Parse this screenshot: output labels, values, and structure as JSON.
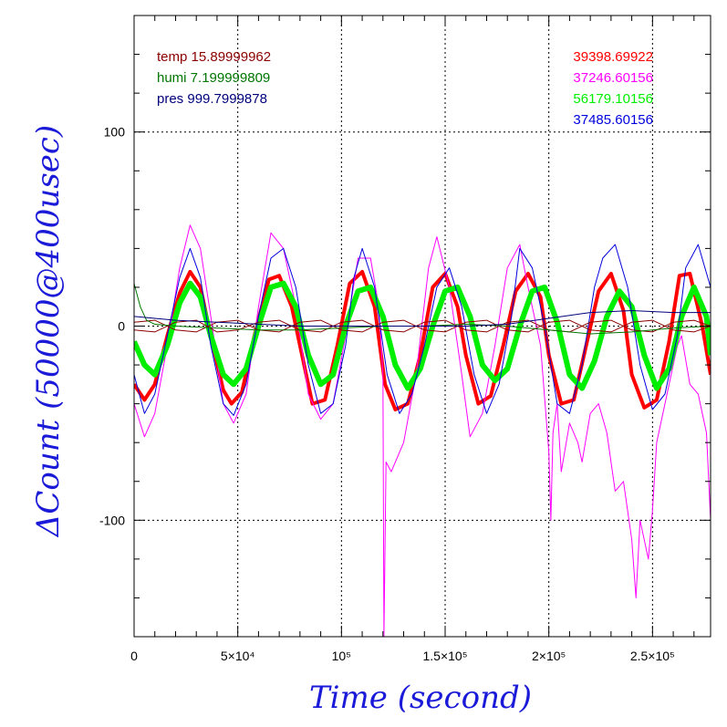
{
  "chart_data": {
    "type": "line",
    "xlabel": "Time (second)",
    "ylabel": "ΔCount (50000@400usec)",
    "xlim": [
      0,
      278000
    ],
    "ylim": [
      -160,
      160
    ],
    "grid": true,
    "x_ticks": [
      {
        "value": 0,
        "label": "0"
      },
      {
        "value": 50000,
        "label": "5×10⁴"
      },
      {
        "value": 100000,
        "label": "10⁵"
      },
      {
        "value": 150000,
        "label": "1.5×10⁵"
      },
      {
        "value": 200000,
        "label": "2×10⁵"
      },
      {
        "value": 250000,
        "label": "2.5×10⁵"
      }
    ],
    "y_ticks": [
      {
        "value": 100,
        "label": "100"
      },
      {
        "value": 0,
        "label": "0"
      },
      {
        "value": -100,
        "label": "-100"
      }
    ],
    "legend_left": [
      {
        "label": "temp 15.89999962",
        "color": "#8b0000"
      },
      {
        "label": "humi 7.199999809",
        "color": "#007700"
      },
      {
        "label": "pres 999.7999878",
        "color": "#00007a"
      }
    ],
    "legend_right": [
      {
        "label": "39398.69922",
        "color": "#ff0000"
      },
      {
        "label": "37246.60156",
        "color": "#ff00ff"
      },
      {
        "label": "56179.10156",
        "color": "#00ee00"
      },
      {
        "label": "37485.60156",
        "color": "#0000dd"
      }
    ],
    "series": [
      {
        "name": "39398.69922",
        "color": "#ff0000",
        "width": 4,
        "x": [
          0,
          5000,
          10000,
          16000,
          22000,
          27000,
          32000,
          37000,
          43000,
          47000,
          52000,
          58000,
          65000,
          70000,
          76000,
          82000,
          86000,
          92000,
          98000,
          104000,
          110000,
          116000,
          121000,
          126000,
          132000,
          138000,
          144000,
          150000,
          156000,
          160000,
          166000,
          172000,
          178000,
          184000,
          190000,
          196000,
          200000,
          206000,
          212000,
          218000,
          224000,
          230000,
          236000,
          240000,
          246000,
          252000,
          258000,
          263000,
          268000,
          274000,
          278000
        ],
        "y": [
          -30,
          -38,
          -30,
          -5,
          17,
          28,
          20,
          -5,
          -33,
          -40,
          -34,
          -5,
          24,
          26,
          10,
          -20,
          -40,
          -38,
          -10,
          22,
          28,
          10,
          -30,
          -43,
          -40,
          -15,
          20,
          27,
          10,
          -15,
          -40,
          -36,
          -10,
          18,
          27,
          15,
          -15,
          -40,
          -38,
          -10,
          18,
          27,
          8,
          -25,
          -42,
          -38,
          -8,
          26,
          27,
          0,
          -25
        ]
      },
      {
        "name": "37246.60156",
        "color": "#ff00ff",
        "width": 1,
        "x": [
          0,
          5000,
          10000,
          16000,
          22000,
          27000,
          32000,
          37000,
          43000,
          48000,
          54000,
          60000,
          66000,
          72000,
          78000,
          84000,
          90000,
          96000,
          102000,
          108000,
          114000,
          118000,
          120000,
          120500,
          121500,
          124000,
          130000,
          136000,
          142000,
          146000,
          152000,
          158000,
          162000,
          168000,
          174000,
          180000,
          186000,
          190000,
          196000,
          200000,
          201000,
          202000,
          204000,
          206000,
          210000,
          214000,
          216000,
          220000,
          224000,
          228000,
          232000,
          236000,
          240000,
          242000,
          244000,
          248000,
          250000,
          252000,
          256000,
          262000,
          264000,
          268000,
          272000,
          276000,
          278000
        ],
        "y": [
          -40,
          -57,
          -45,
          -10,
          30,
          52,
          40,
          5,
          -40,
          -50,
          -35,
          10,
          48,
          40,
          10,
          -35,
          -48,
          -40,
          -5,
          35,
          35,
          10,
          -25,
          -160,
          -70,
          -75,
          -60,
          -25,
          30,
          46,
          20,
          -25,
          -57,
          -45,
          -10,
          30,
          42,
          20,
          -10,
          -65,
          -100,
          -55,
          -40,
          -75,
          -50,
          -60,
          -70,
          -45,
          -40,
          -55,
          -85,
          -80,
          -110,
          -140,
          -100,
          -120,
          -95,
          -60,
          -40,
          -10,
          -5,
          -30,
          -35,
          -55,
          -100
        ]
      },
      {
        "name": "56179.10156",
        "color": "#00ee00",
        "width": 6,
        "x": [
          0,
          5000,
          10000,
          16000,
          22000,
          27000,
          32000,
          37000,
          43000,
          48000,
          54000,
          60000,
          66000,
          72000,
          78000,
          84000,
          90000,
          96000,
          102000,
          108000,
          114000,
          120000,
          126000,
          132000,
          138000,
          144000,
          150000,
          156000,
          162000,
          168000,
          174000,
          180000,
          186000,
          192000,
          198000,
          204000,
          210000,
          216000,
          222000,
          228000,
          234000,
          240000,
          246000,
          252000,
          258000,
          264000,
          270000,
          276000,
          278000
        ],
        "y": [
          -8,
          -20,
          -25,
          -10,
          12,
          22,
          15,
          -5,
          -25,
          -30,
          -22,
          0,
          20,
          22,
          10,
          -15,
          -30,
          -25,
          0,
          18,
          20,
          5,
          -20,
          -32,
          -22,
          0,
          18,
          20,
          5,
          -20,
          -28,
          -22,
          0,
          18,
          20,
          2,
          -25,
          -32,
          -18,
          5,
          18,
          10,
          -15,
          -32,
          -22,
          5,
          20,
          5,
          -15
        ]
      },
      {
        "name": "37485.60156",
        "color": "#0000dd",
        "width": 1,
        "x": [
          0,
          5000,
          10000,
          16000,
          22000,
          27000,
          32000,
          37000,
          43000,
          48000,
          54000,
          60000,
          66000,
          72000,
          78000,
          84000,
          90000,
          96000,
          102000,
          106000,
          110000,
          116000,
          122000,
          128000,
          134000,
          140000,
          146000,
          152000,
          158000,
          164000,
          170000,
          176000,
          182000,
          186000,
          192000,
          198000,
          204000,
          210000,
          216000,
          222000,
          226000,
          232000,
          238000,
          244000,
          250000,
          256000,
          262000,
          266000,
          272000,
          278000
        ],
        "y": [
          -25,
          -45,
          -35,
          -5,
          25,
          40,
          25,
          -10,
          -40,
          -46,
          -30,
          5,
          35,
          40,
          20,
          -20,
          -45,
          -40,
          -10,
          25,
          40,
          20,
          -25,
          -45,
          -35,
          -10,
          20,
          30,
          10,
          -25,
          -45,
          -30,
          5,
          40,
          30,
          0,
          -40,
          -45,
          -20,
          20,
          35,
          42,
          20,
          -20,
          -43,
          -35,
          -5,
          30,
          42,
          20
        ]
      },
      {
        "name": "",
        "color": "#8b0000",
        "width": 1,
        "x": [
          0,
          10000,
          20000,
          30000,
          40000,
          50000,
          60000,
          70000,
          80000,
          90000,
          100000,
          110000,
          120000,
          130000,
          140000,
          150000,
          160000,
          170000,
          180000,
          190000,
          200000,
          210000,
          220000,
          230000,
          240000,
          250000,
          260000,
          270000,
          278000
        ],
        "y": [
          -2,
          -3,
          2,
          3,
          -3,
          -2,
          2,
          3,
          -2,
          -3,
          2,
          3,
          -2,
          -3,
          2,
          3,
          -2,
          -3,
          2,
          3,
          -2,
          -3,
          2,
          3,
          -2,
          -3,
          2,
          3,
          0
        ]
      },
      {
        "name": "",
        "color": "#8b0000",
        "width": 1,
        "x": [
          0,
          10000,
          20000,
          30000,
          40000,
          50000,
          60000,
          70000,
          80000,
          90000,
          100000,
          110000,
          120000,
          130000,
          140000,
          150000,
          160000,
          170000,
          180000,
          190000,
          200000,
          210000,
          220000,
          230000,
          240000,
          250000,
          260000,
          270000,
          278000
        ],
        "y": [
          2,
          3,
          -2,
          -3,
          2,
          3,
          -2,
          -3,
          2,
          3,
          -2,
          -3,
          2,
          3,
          -2,
          -3,
          2,
          3,
          -2,
          -3,
          2,
          3,
          -2,
          -3,
          2,
          3,
          -2,
          -3,
          0
        ]
      },
      {
        "name": "",
        "color": "#007700",
        "width": 1,
        "x": [
          0,
          3000,
          6000,
          10000,
          20000,
          40000,
          60000,
          80000,
          100000,
          120000,
          140000,
          160000,
          180000,
          200000,
          220000,
          240000,
          260000,
          278000
        ],
        "y": [
          22,
          10,
          3,
          1,
          0,
          -1,
          -2,
          -2,
          -1,
          0,
          0,
          1,
          0,
          -2,
          -4,
          -3,
          -1,
          0
        ]
      },
      {
        "name": "",
        "color": "#00007a",
        "width": 1,
        "x": [
          0,
          20000,
          40000,
          60000,
          80000,
          100000,
          120000,
          140000,
          160000,
          180000,
          200000,
          220000,
          240000,
          260000,
          278000
        ],
        "y": [
          5,
          3,
          2,
          1,
          0,
          0,
          0,
          0,
          0,
          1,
          4,
          7,
          8,
          7,
          7
        ]
      }
    ]
  }
}
